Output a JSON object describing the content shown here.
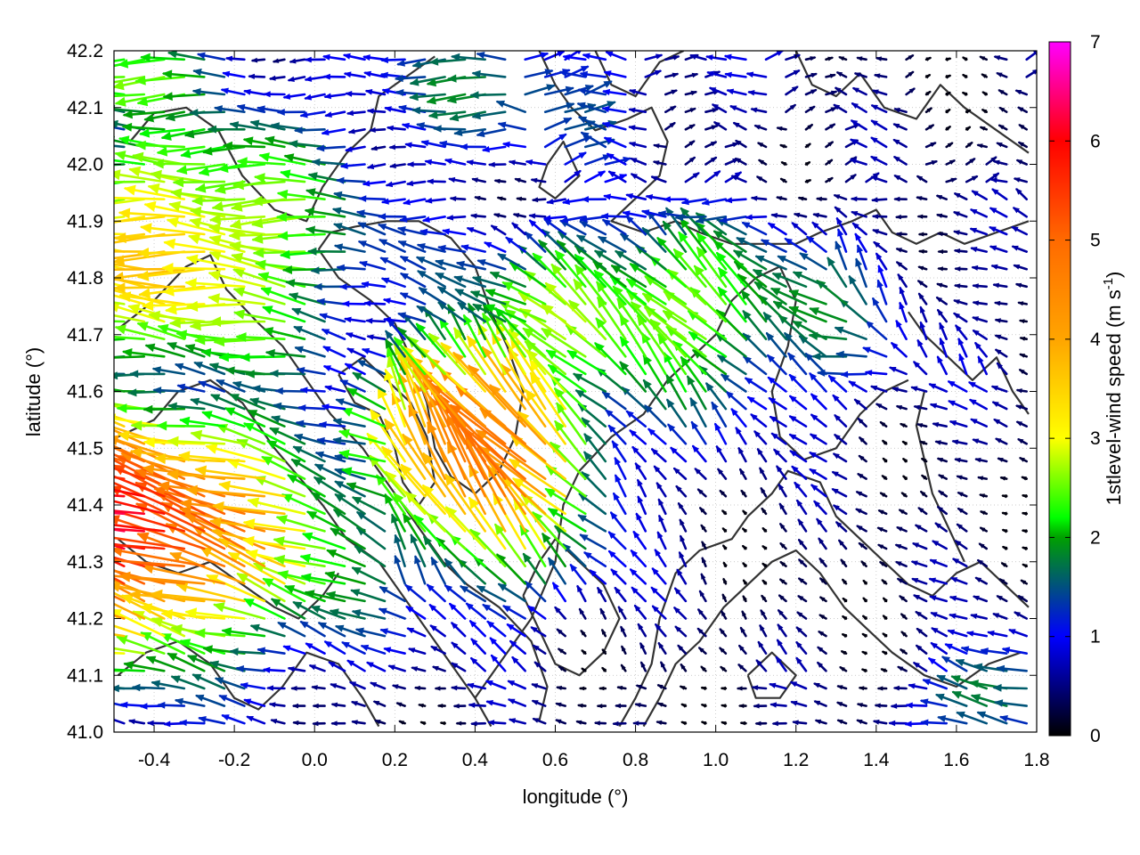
{
  "chart_data": {
    "type": "vector-field",
    "title": "",
    "xlabel": "longitude (°)",
    "ylabel": "latitude (°)",
    "xlim": [
      -0.5,
      1.8
    ],
    "ylim": [
      41.0,
      42.2
    ],
    "x_ticks": [
      "-0.4",
      "-0.2",
      "0.0",
      "0.2",
      "0.4",
      "0.6",
      "0.8",
      "1.0",
      "1.2",
      "1.4",
      "1.6",
      "1.8"
    ],
    "x_tick_values": [
      -0.4,
      -0.2,
      0.0,
      0.2,
      0.4,
      0.6,
      0.8,
      1.0,
      1.2,
      1.4,
      1.6,
      1.8
    ],
    "y_ticks": [
      "41.0",
      "41.1",
      "41.2",
      "41.3",
      "41.4",
      "41.5",
      "41.6",
      "41.7",
      "41.8",
      "41.9",
      "42.0",
      "42.1",
      "42.2"
    ],
    "y_tick_values": [
      41.0,
      41.1,
      41.2,
      41.3,
      41.4,
      41.5,
      41.6,
      41.7,
      41.8,
      41.9,
      42.0,
      42.1,
      42.2
    ],
    "grid": true,
    "colorbar": {
      "label_main": "1stlevel-wind speed (m s",
      "label_sup": "-1",
      "label_end": ")",
      "range": [
        0,
        7
      ],
      "ticks": [
        "0",
        "1",
        "2",
        "3",
        "4",
        "5",
        "6",
        "7"
      ],
      "tick_values": [
        0,
        1,
        2,
        3,
        4,
        5,
        6,
        7
      ],
      "palette": [
        "#000000",
        "#0000ff",
        "#00a000",
        "#00ff00",
        "#ffff00",
        "#ffa500",
        "#ff6a00",
        "#ff0000",
        "#ff00ff"
      ],
      "palette_stops": [
        0,
        1,
        2,
        2.2,
        3,
        4,
        5,
        6,
        7
      ]
    },
    "contour_color": "#333333",
    "contours": [
      [
        [
          -0.49,
          41.71
        ],
        [
          -0.4,
          41.76
        ],
        [
          -0.32,
          41.82
        ],
        [
          -0.26,
          41.84
        ],
        [
          -0.22,
          41.78
        ],
        [
          -0.14,
          41.72
        ],
        [
          -0.08,
          41.68
        ],
        [
          -0.02,
          41.62
        ],
        [
          0.04,
          41.56
        ],
        [
          0.12,
          41.5
        ],
        [
          0.2,
          41.42
        ],
        [
          0.26,
          41.36
        ],
        [
          0.32,
          41.3
        ],
        [
          0.38,
          41.26
        ],
        [
          0.46,
          41.22
        ],
        [
          0.54,
          41.16
        ],
        [
          0.58,
          41.08
        ],
        [
          0.56,
          41.02
        ]
      ],
      [
        [
          -0.49,
          41.52
        ],
        [
          -0.4,
          41.55
        ],
        [
          -0.34,
          41.6
        ],
        [
          -0.26,
          41.62
        ],
        [
          -0.18,
          41.58
        ],
        [
          -0.1,
          41.5
        ],
        [
          -0.04,
          41.45
        ],
        [
          0.02,
          41.4
        ],
        [
          0.08,
          41.34
        ],
        [
          0.16,
          41.3
        ],
        [
          0.22,
          41.24
        ],
        [
          0.28,
          41.18
        ],
        [
          0.34,
          41.12
        ],
        [
          0.4,
          41.06
        ],
        [
          0.44,
          41.01
        ]
      ],
      [
        [
          -0.46,
          42.04
        ],
        [
          -0.4,
          42.09
        ],
        [
          -0.32,
          42.1
        ],
        [
          -0.24,
          42.06
        ],
        [
          -0.18,
          41.98
        ],
        [
          -0.1,
          41.92
        ],
        [
          -0.02,
          41.9
        ],
        [
          0.02,
          41.96
        ],
        [
          0.08,
          42.02
        ],
        [
          0.14,
          42.06
        ],
        [
          0.16,
          42.12
        ],
        [
          0.24,
          42.16
        ],
        [
          0.3,
          42.19
        ]
      ],
      [
        [
          0.01,
          41.85
        ],
        [
          0.06,
          41.8
        ],
        [
          0.14,
          41.76
        ],
        [
          0.2,
          41.72
        ],
        [
          0.24,
          41.66
        ],
        [
          0.28,
          41.58
        ],
        [
          0.3,
          41.5
        ],
        [
          0.34,
          41.45
        ],
        [
          0.4,
          41.42
        ],
        [
          0.46,
          41.46
        ],
        [
          0.5,
          41.52
        ],
        [
          0.52,
          41.6
        ],
        [
          0.48,
          41.68
        ],
        [
          0.44,
          41.74
        ],
        [
          0.4,
          41.82
        ],
        [
          0.34,
          41.87
        ],
        [
          0.26,
          41.9
        ],
        [
          0.18,
          41.9
        ],
        [
          0.1,
          41.89
        ],
        [
          0.04,
          41.88
        ],
        [
          0.01,
          41.85
        ]
      ],
      [
        [
          0.4,
          41.06
        ],
        [
          0.46,
          41.12
        ],
        [
          0.54,
          41.2
        ],
        [
          0.6,
          41.3
        ],
        [
          0.62,
          41.4
        ],
        [
          0.66,
          41.46
        ],
        [
          0.74,
          41.52
        ],
        [
          0.82,
          41.56
        ],
        [
          0.88,
          41.62
        ],
        [
          0.94,
          41.66
        ],
        [
          1.0,
          41.7
        ],
        [
          1.04,
          41.76
        ],
        [
          1.1,
          41.8
        ],
        [
          1.16,
          41.82
        ],
        [
          1.2,
          41.76
        ],
        [
          1.18,
          41.68
        ],
        [
          1.14,
          41.6
        ],
        [
          1.16,
          41.52
        ],
        [
          1.22,
          41.48
        ],
        [
          1.3,
          41.5
        ],
        [
          1.36,
          41.56
        ],
        [
          1.42,
          41.6
        ],
        [
          1.48,
          41.62
        ]
      ],
      [
        [
          0.56,
          42.2
        ],
        [
          0.6,
          42.14
        ],
        [
          0.64,
          42.1
        ],
        [
          0.7,
          42.06
        ],
        [
          0.78,
          42.08
        ],
        [
          0.84,
          42.1
        ],
        [
          0.88,
          42.04
        ],
        [
          0.86,
          41.98
        ],
        [
          0.8,
          41.94
        ],
        [
          0.74,
          41.9
        ],
        [
          0.82,
          41.88
        ],
        [
          0.9,
          41.9
        ],
        [
          0.96,
          41.88
        ],
        [
          1.04,
          41.86
        ],
        [
          1.12,
          41.86
        ],
        [
          1.2,
          41.86
        ],
        [
          1.26,
          41.88
        ],
        [
          1.34,
          41.9
        ],
        [
          1.4,
          41.92
        ],
        [
          1.44,
          41.88
        ],
        [
          1.5,
          41.86
        ],
        [
          1.56,
          41.88
        ],
        [
          1.62,
          41.86
        ],
        [
          1.7,
          41.88
        ],
        [
          1.78,
          41.9
        ]
      ],
      [
        [
          0.7,
          42.2
        ],
        [
          0.74,
          42.14
        ],
        [
          0.8,
          42.12
        ],
        [
          0.86,
          42.18
        ],
        [
          0.92,
          42.2
        ]
      ],
      [
        [
          1.2,
          42.2
        ],
        [
          1.24,
          42.14
        ],
        [
          1.3,
          42.12
        ],
        [
          1.36,
          42.16
        ],
        [
          1.42,
          42.1
        ],
        [
          1.5,
          42.08
        ],
        [
          1.56,
          42.14
        ],
        [
          1.62,
          42.1
        ],
        [
          1.7,
          42.06
        ],
        [
          1.78,
          42.02
        ]
      ],
      [
        [
          0.76,
          41.01
        ],
        [
          0.8,
          41.06
        ],
        [
          0.84,
          41.12
        ],
        [
          0.86,
          41.2
        ],
        [
          0.9,
          41.28
        ],
        [
          0.96,
          41.32
        ],
        [
          1.04,
          41.34
        ],
        [
          1.08,
          41.38
        ],
        [
          1.14,
          41.42
        ],
        [
          1.18,
          41.46
        ],
        [
          1.26,
          41.44
        ],
        [
          1.3,
          41.38
        ],
        [
          1.36,
          41.34
        ],
        [
          1.42,
          41.3
        ],
        [
          1.48,
          41.26
        ],
        [
          1.54,
          41.24
        ],
        [
          1.6,
          41.28
        ],
        [
          1.66,
          41.3
        ],
        [
          1.72,
          41.26
        ],
        [
          1.78,
          41.22
        ]
      ],
      [
        [
          0.82,
          41.01
        ],
        [
          0.86,
          41.06
        ],
        [
          0.9,
          41.12
        ],
        [
          0.96,
          41.16
        ],
        [
          1.02,
          41.22
        ],
        [
          1.08,
          41.26
        ],
        [
          1.14,
          41.3
        ],
        [
          1.2,
          41.32
        ],
        [
          1.26,
          41.28
        ],
        [
          1.32,
          41.22
        ],
        [
          1.38,
          41.18
        ],
        [
          1.44,
          41.14
        ],
        [
          1.52,
          41.1
        ],
        [
          1.6,
          41.08
        ],
        [
          1.68,
          41.12
        ],
        [
          1.76,
          41.14
        ]
      ],
      [
        [
          -0.49,
          41.1
        ],
        [
          -0.42,
          41.14
        ],
        [
          -0.34,
          41.16
        ],
        [
          -0.26,
          41.12
        ],
        [
          -0.2,
          41.06
        ],
        [
          -0.14,
          41.04
        ],
        [
          -0.08,
          41.08
        ],
        [
          -0.02,
          41.14
        ],
        [
          0.06,
          41.12
        ],
        [
          0.12,
          41.06
        ],
        [
          0.16,
          41.01
        ]
      ],
      [
        [
          -0.49,
          41.34
        ],
        [
          -0.42,
          41.3
        ],
        [
          -0.34,
          41.28
        ],
        [
          -0.26,
          41.3
        ],
        [
          -0.18,
          41.26
        ],
        [
          -0.1,
          41.22
        ],
        [
          -0.04,
          41.2
        ],
        [
          0.02,
          41.24
        ],
        [
          0.06,
          41.28
        ]
      ],
      [
        [
          0.52,
          41.24
        ],
        [
          0.56,
          41.3
        ],
        [
          0.6,
          41.34
        ],
        [
          0.66,
          41.3
        ],
        [
          0.72,
          41.26
        ],
        [
          0.76,
          41.2
        ],
        [
          0.72,
          41.14
        ],
        [
          0.66,
          41.1
        ],
        [
          0.6,
          41.12
        ],
        [
          0.56,
          41.18
        ],
        [
          0.52,
          41.24
        ]
      ],
      [
        [
          1.48,
          41.74
        ],
        [
          1.52,
          41.7
        ],
        [
          1.58,
          41.66
        ],
        [
          1.64,
          41.62
        ],
        [
          1.7,
          41.66
        ],
        [
          1.74,
          41.6
        ],
        [
          1.78,
          41.56
        ]
      ],
      [
        [
          1.52,
          41.6
        ],
        [
          1.5,
          41.54
        ],
        [
          1.52,
          41.48
        ],
        [
          1.54,
          41.42
        ],
        [
          1.58,
          41.36
        ],
        [
          1.62,
          41.3
        ]
      ],
      [
        [
          0.06,
          41.63
        ],
        [
          0.1,
          41.58
        ],
        [
          0.16,
          41.56
        ],
        [
          0.2,
          41.5
        ],
        [
          0.22,
          41.44
        ],
        [
          0.26,
          41.4
        ],
        [
          0.3,
          41.44
        ],
        [
          0.28,
          41.52
        ],
        [
          0.24,
          41.58
        ],
        [
          0.18,
          41.62
        ],
        [
          0.12,
          41.66
        ],
        [
          0.06,
          41.63
        ]
      ],
      [
        [
          0.58,
          42.0
        ],
        [
          0.62,
          42.04
        ],
        [
          0.66,
          41.98
        ],
        [
          0.6,
          41.94
        ],
        [
          0.56,
          41.96
        ],
        [
          0.58,
          42.0
        ]
      ],
      [
        [
          1.08,
          41.1
        ],
        [
          1.14,
          41.14
        ],
        [
          1.2,
          41.1
        ],
        [
          1.16,
          41.06
        ],
        [
          1.1,
          41.06
        ],
        [
          1.08,
          41.1
        ]
      ]
    ]
  }
}
